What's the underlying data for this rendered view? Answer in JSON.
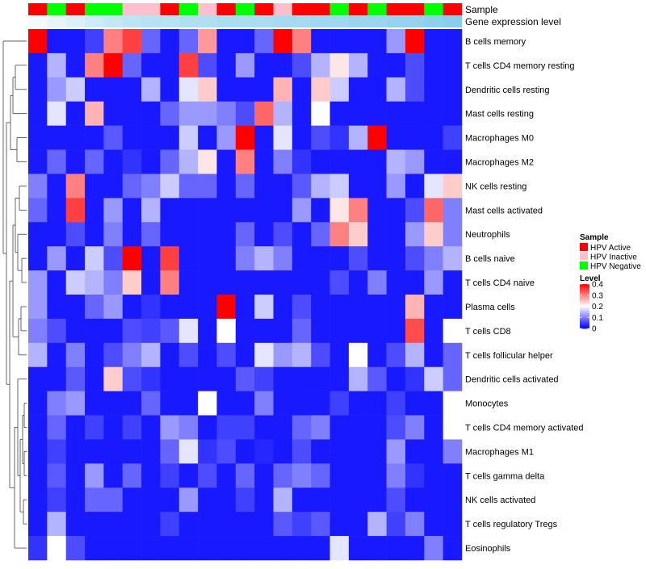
{
  "chart_data": {
    "type": "heatmap",
    "title": "",
    "annotation_rows": [
      {
        "name": "Sample",
        "values": [
          "HPV Active",
          "HPV Negative",
          "HPV Active",
          "HPV Negative",
          "HPV Negative",
          "HPV Inactive",
          "HPV Inactive",
          "HPV Active",
          "HPV Negative",
          "HPV Inactive",
          "HPV Active",
          "HPV Negative",
          "HPV Active",
          "HPV Inactive",
          "HPV Active",
          "HPV Active",
          "HPV Negative",
          "HPV Active",
          "HPV Negative",
          "HPV Active",
          "HPV Active",
          "HPV Negative",
          "HPV Active"
        ]
      },
      {
        "name": "Gene expression level",
        "values": [
          0.1,
          0.2,
          0.3,
          0.4,
          0.5,
          0.55,
          0.6,
          0.6,
          0.65,
          0.65,
          0.7,
          0.7,
          0.7,
          0.75,
          0.75,
          0.8,
          0.8,
          0.85,
          0.85,
          0.9,
          0.9,
          0.95,
          1.0
        ]
      }
    ],
    "rows": [
      "B cells memory",
      "T cells CD4 memory resting",
      "Dendritic cells resting",
      "Mast cells resting",
      "Macrophages M0",
      "Macrophages M2",
      "NK cells resting",
      "Mast cells activated",
      "Neutrophils",
      "B cells naive",
      "T cells CD4 naive",
      "Plasma cells",
      "T cells CD8",
      "T cells follicular helper",
      "Dendritic cells activated",
      "Monocytes",
      "T cells CD4 memory activated",
      "Macrophages M1",
      "T cells gamma delta",
      "NK cells activated",
      "T cells regulatory  Tregs",
      "Eosinophils"
    ],
    "values": [
      [
        0.4,
        0.02,
        0.02,
        0.05,
        0.3,
        0.35,
        0.08,
        0.02,
        0.08,
        0.28,
        0.02,
        0.02,
        0.08,
        0.4,
        0.3,
        0.02,
        0.02,
        0.02,
        0.02,
        0.12,
        0.4,
        0.02,
        0.02
      ],
      [
        0.02,
        0.14,
        0.02,
        0.3,
        0.4,
        0.08,
        0.02,
        0.02,
        0.35,
        0.06,
        0.02,
        0.12,
        0.02,
        0.02,
        0.06,
        0.14,
        0.22,
        0.14,
        0.02,
        0.02,
        0.06,
        0.02,
        0.02
      ],
      [
        0.02,
        0.12,
        0.16,
        0.02,
        0.02,
        0.02,
        0.14,
        0.02,
        0.18,
        0.24,
        0.02,
        0.02,
        0.02,
        0.26,
        0.02,
        0.24,
        0.16,
        0.02,
        0.02,
        0.14,
        0.06,
        0.02,
        0.02
      ],
      [
        0.02,
        0.18,
        0.02,
        0.26,
        0.02,
        0.02,
        0.02,
        0.08,
        0.12,
        0.12,
        0.1,
        0.06,
        0.32,
        0.14,
        0.02,
        0.2,
        0.02,
        0.02,
        0.02,
        0.02,
        0.02,
        0.02,
        0.02
      ],
      [
        0.02,
        0.02,
        0.02,
        0.02,
        0.07,
        0.02,
        0.02,
        0.02,
        0.16,
        0.02,
        0.12,
        0.4,
        0.02,
        0.18,
        0.02,
        0.06,
        0.04,
        0.14,
        0.4,
        0.02,
        0.02,
        0.02,
        0.05
      ],
      [
        0.02,
        0.08,
        0.02,
        0.08,
        0.02,
        0.04,
        0.02,
        0.08,
        0.14,
        0.22,
        0.02,
        0.3,
        0.02,
        0.1,
        0.04,
        0.02,
        0.02,
        0.02,
        0.02,
        0.14,
        0.12,
        0.02,
        0.02
      ],
      [
        0.1,
        0.02,
        0.3,
        0.02,
        0.02,
        0.08,
        0.1,
        0.16,
        0.08,
        0.08,
        0.02,
        0.08,
        0.02,
        0.02,
        0.07,
        0.14,
        0.16,
        0.02,
        0.02,
        0.12,
        0.02,
        0.18,
        0.24
      ],
      [
        0.08,
        0.02,
        0.35,
        0.02,
        0.12,
        0.02,
        0.14,
        0.02,
        0.02,
        0.02,
        0.02,
        0.02,
        0.02,
        0.02,
        0.12,
        0.02,
        0.22,
        0.3,
        0.02,
        0.02,
        0.06,
        0.32,
        0.1
      ],
      [
        0.02,
        0.02,
        0.06,
        0.02,
        0.1,
        0.02,
        0.08,
        0.02,
        0.02,
        0.02,
        0.02,
        0.08,
        0.02,
        0.06,
        0.02,
        0.08,
        0.3,
        0.24,
        0.02,
        0.02,
        0.12,
        0.24,
        0.1
      ],
      [
        0.02,
        0.12,
        0.02,
        0.16,
        0.06,
        0.4,
        0.02,
        0.35,
        0.02,
        0.02,
        0.02,
        0.1,
        0.14,
        0.1,
        0.02,
        0.02,
        0.02,
        0.06,
        0.02,
        0.02,
        0.06,
        0.1,
        0.14
      ],
      [
        0.12,
        0.02,
        0.16,
        0.14,
        0.1,
        0.24,
        0.02,
        0.3,
        0.02,
        0.02,
        0.02,
        0.02,
        0.02,
        0.02,
        0.02,
        0.02,
        0.06,
        0.02,
        0.1,
        0.02,
        0.02,
        0.12,
        0.02
      ],
      [
        0.12,
        0.02,
        0.02,
        0.08,
        0.12,
        0.02,
        0.04,
        0.02,
        0.02,
        0.02,
        0.4,
        0.02,
        0.16,
        0.02,
        0.06,
        0.02,
        0.02,
        0.02,
        0.02,
        0.02,
        0.26,
        0.02,
        0.02
      ],
      [
        0.1,
        0.06,
        0.02,
        0.02,
        0.02,
        0.06,
        0.05,
        0.07,
        0.18,
        0.02,
        0.2,
        0.02,
        0.02,
        0.02,
        0.08,
        0.02,
        0.02,
        0.02,
        0.02,
        0.02,
        0.34,
        0.02,
        0.2
      ],
      [
        0.14,
        0.02,
        0.1,
        0.02,
        0.06,
        0.1,
        0.14,
        0.02,
        0.06,
        0.02,
        0.06,
        0.02,
        0.18,
        0.12,
        0.14,
        0.06,
        0.02,
        0.2,
        0.02,
        0.06,
        0.14,
        0.02,
        0.08
      ],
      [
        0.02,
        0.02,
        0.07,
        0.02,
        0.24,
        0.06,
        0.04,
        0.02,
        0.02,
        0.02,
        0.02,
        0.07,
        0.05,
        0.02,
        0.02,
        0.02,
        0.02,
        0.14,
        0.07,
        0.02,
        0.04,
        0.16,
        0.08
      ],
      [
        0.02,
        0.1,
        0.12,
        0.02,
        0.02,
        0.02,
        0.08,
        0.02,
        0.02,
        0.2,
        0.02,
        0.02,
        0.1,
        0.02,
        0.02,
        0.02,
        0.05,
        0.02,
        0.02,
        0.05,
        0.02,
        0.02,
        0.2
      ],
      [
        0.02,
        0.08,
        0.02,
        0.05,
        0.02,
        0.05,
        0.02,
        0.12,
        0.1,
        0.02,
        0.05,
        0.05,
        0.02,
        0.02,
        0.08,
        0.1,
        0.02,
        0.02,
        0.02,
        0.06,
        0.1,
        0.02,
        0.2
      ],
      [
        0.02,
        0.05,
        0.02,
        0.02,
        0.02,
        0.02,
        0.02,
        0.08,
        0.18,
        0.04,
        0.06,
        0.02,
        0.03,
        0.02,
        0.06,
        0.02,
        0.02,
        0.02,
        0.02,
        0.12,
        0.02,
        0.02,
        0.1
      ],
      [
        0.02,
        0.07,
        0.02,
        0.12,
        0.02,
        0.08,
        0.02,
        0.05,
        0.02,
        0.06,
        0.02,
        0.08,
        0.02,
        0.08,
        0.1,
        0.08,
        0.02,
        0.02,
        0.02,
        0.1,
        0.04,
        0.02,
        0.02
      ],
      [
        0.02,
        0.05,
        0.02,
        0.08,
        0.08,
        0.02,
        0.02,
        0.02,
        0.12,
        0.02,
        0.02,
        0.05,
        0.02,
        0.14,
        0.02,
        0.02,
        0.02,
        0.02,
        0.02,
        0.06,
        0.02,
        0.02,
        0.02
      ],
      [
        0.02,
        0.14,
        0.02,
        0.02,
        0.02,
        0.02,
        0.02,
        0.05,
        0.02,
        0.02,
        0.02,
        0.02,
        0.02,
        0.07,
        0.05,
        0.07,
        0.02,
        0.02,
        0.14,
        0.05,
        0.1,
        0.02,
        0.02
      ],
      [
        0.04,
        0.2,
        0.06,
        0.02,
        0.02,
        0.02,
        0.02,
        0.02,
        0.02,
        0.02,
        0.02,
        0.02,
        0.02,
        0.02,
        0.02,
        0.02,
        0.18,
        0.02,
        0.02,
        0.02,
        0.02,
        0.1,
        0.02
      ]
    ],
    "color_scale": {
      "min": 0,
      "max": 0.4,
      "low": "#0000ff",
      "mid": "#ffffff",
      "high": "#ff0000",
      "mid_value": 0.2
    },
    "annotation_colors": {
      "HPV Active": "#ff0000",
      "HPV Inactive": "#ffc0cb",
      "HPV Negative": "#00ff00"
    },
    "expression_colors": {
      "low": "#ffffff",
      "high": "#87ceeb"
    },
    "legend": {
      "sample_title": "Sample",
      "sample_items": [
        "HPV Active",
        "HPV Inactive",
        "HPV Negative"
      ],
      "level_title": "Level",
      "level_ticks": [
        "0.4",
        "0.3",
        "0.2",
        "0.1",
        "0"
      ]
    }
  }
}
